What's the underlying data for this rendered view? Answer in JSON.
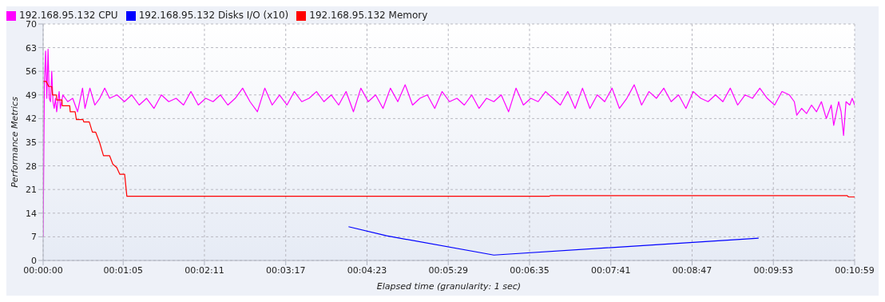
{
  "chart_data": {
    "type": "line",
    "xlabel": "Elapsed time (granularity: 1 sec)",
    "ylabel": "Performance Metrics",
    "xlim": [
      0,
      659
    ],
    "xticks": [
      {
        "value": 0,
        "label": "00:00:00"
      },
      {
        "value": 65,
        "label": "00:01:05"
      },
      {
        "value": 131,
        "label": "00:02:11"
      },
      {
        "value": 197,
        "label": "00:03:17"
      },
      {
        "value": 263,
        "label": "00:04:23"
      },
      {
        "value": 329,
        "label": "00:05:29"
      },
      {
        "value": 395,
        "label": "00:06:35"
      },
      {
        "value": 461,
        "label": "00:07:41"
      },
      {
        "value": 527,
        "label": "00:08:47"
      },
      {
        "value": 593,
        "label": "00:09:53"
      },
      {
        "value": 659,
        "label": "00:10:59"
      }
    ],
    "ylim": [
      0,
      70
    ],
    "yticks": [
      0,
      7,
      14,
      21,
      28,
      35,
      42,
      49,
      56,
      63,
      70
    ],
    "grid": true,
    "legend": "top left",
    "marker": "none",
    "line_style": "solid",
    "series": [
      {
        "name": "192.168.95.132 CPU",
        "color": "#ff00ff",
        "x": [
          0,
          1,
          2,
          3,
          4,
          5,
          6,
          7,
          8,
          9,
          10,
          11,
          13,
          14,
          16,
          20,
          24,
          28,
          32,
          34,
          38,
          42,
          46,
          50,
          54,
          60,
          66,
          72,
          78,
          84,
          90,
          96,
          102,
          108,
          114,
          120,
          126,
          132,
          138,
          144,
          150,
          156,
          162,
          168,
          174,
          180,
          186,
          192,
          198,
          204,
          210,
          216,
          222,
          228,
          234,
          240,
          246,
          252,
          258,
          264,
          270,
          276,
          282,
          288,
          294,
          300,
          306,
          312,
          318,
          324,
          330,
          336,
          342,
          348,
          354,
          360,
          366,
          372,
          378,
          384,
          390,
          396,
          402,
          408,
          414,
          420,
          426,
          432,
          438,
          444,
          450,
          456,
          462,
          468,
          474,
          480,
          486,
          492,
          498,
          504,
          510,
          516,
          522,
          528,
          534,
          540,
          546,
          552,
          558,
          564,
          570,
          576,
          582,
          588,
          594,
          600,
          606,
          610,
          612,
          616,
          620,
          624,
          628,
          632,
          636,
          640,
          642,
          646,
          648,
          650,
          652,
          655,
          657,
          659
        ],
        "values": [
          7,
          52,
          62,
          48,
          62.5,
          48,
          47,
          56,
          47,
          45,
          48,
          44,
          50,
          45,
          49,
          47,
          48,
          44,
          51,
          45,
          51,
          46,
          48,
          51,
          48,
          49,
          47,
          49,
          46,
          48,
          45,
          49,
          47,
          48,
          46,
          50,
          46,
          48,
          47,
          49,
          46,
          48,
          51,
          47,
          44,
          51,
          46,
          49,
          46,
          50,
          47,
          48,
          50,
          47,
          49,
          46,
          50,
          44,
          51,
          47,
          49,
          45,
          51,
          47,
          52,
          46,
          48,
          49,
          45,
          50,
          47,
          48,
          46,
          49,
          45,
          48,
          47,
          49,
          44,
          51,
          46,
          48,
          47,
          50,
          48,
          46,
          50,
          45,
          51,
          45,
          49,
          47,
          51,
          45,
          48,
          52,
          46,
          50,
          48,
          51,
          47,
          49,
          45,
          50,
          48,
          47,
          49,
          47,
          51,
          46,
          49,
          48,
          51,
          48,
          46,
          50,
          49,
          47,
          43,
          45,
          43.5,
          46,
          44,
          47,
          42,
          46,
          40,
          47,
          44,
          37,
          47,
          46,
          48,
          46
        ]
      },
      {
        "name": "192.168.95.132 Disks I/O (x10)",
        "color": "#0000ff",
        "x": [
          248,
          279,
          366,
          581
        ],
        "values": [
          10,
          7.3,
          1.6,
          6.6
        ]
      },
      {
        "name": "192.168.95.132 Memory",
        "color": "#ff0000",
        "x": [
          0,
          2.5,
          4.5,
          7,
          7.6,
          10.8,
          11,
          15.3,
          15.5,
          21.6,
          22,
          26,
          27,
          32.4,
          33,
          37.5,
          40,
          42.6,
          45.8,
          49,
          54,
          56.6,
          59.8,
          62.3,
          66.2,
          68,
          411,
          412,
          653,
          654,
          659
        ],
        "values": [
          53,
          53,
          51.5,
          51.5,
          49,
          49,
          47.5,
          47.5,
          45.8,
          45.8,
          44,
          44,
          41.7,
          41.7,
          41,
          41,
          38,
          38,
          35,
          31,
          31,
          28.5,
          27.5,
          25.5,
          25.5,
          19,
          19,
          19.2,
          19.2,
          18.8,
          18.8
        ]
      }
    ]
  }
}
